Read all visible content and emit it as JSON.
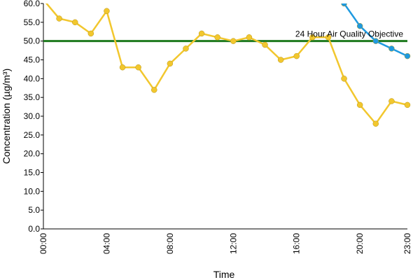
{
  "chart_data": {
    "type": "line",
    "x_label": "Time",
    "y_label": "Concentration (µg/m³)",
    "categories": [
      "00:00",
      null,
      null,
      null,
      "04:00",
      null,
      null,
      null,
      "08:00",
      null,
      null,
      null,
      "12:00",
      null,
      null,
      null,
      "16:00",
      null,
      null,
      null,
      "20:00",
      null,
      null,
      "23:00"
    ],
    "series": [
      {
        "color": "#f2c72e",
        "values": [
          61,
          56,
          55,
          52,
          58,
          43,
          43,
          37,
          44,
          48,
          52,
          51,
          50,
          51,
          49,
          45,
          46,
          51,
          51,
          40,
          33,
          28,
          34,
          33
        ]
      },
      {
        "color": "#1f9ae0",
        "values": [
          null,
          null,
          null,
          null,
          null,
          null,
          null,
          null,
          null,
          null,
          null,
          null,
          null,
          null,
          null,
          null,
          null,
          null,
          null,
          60,
          54,
          50,
          48,
          46
        ]
      }
    ],
    "reference_line": {
      "value": 50,
      "label": "24 Hour Air Quality Objective",
      "color": "#1e7a1e"
    },
    "ylim": [
      0,
      60
    ],
    "yticks": [
      {
        "value": 0,
        "label": "0.0"
      },
      {
        "value": 5,
        "label": "5.0"
      },
      {
        "value": 10,
        "label": "10.0"
      },
      {
        "value": 15,
        "label": "15.0"
      },
      {
        "value": 20,
        "label": "20.0"
      },
      {
        "value": 25,
        "label": "25.0"
      },
      {
        "value": 30,
        "label": "30.0"
      },
      {
        "value": 35,
        "label": "35.0"
      },
      {
        "value": 40,
        "label": "40.0"
      },
      {
        "value": 45,
        "label": "45.0"
      },
      {
        "value": 50,
        "label": "50.0"
      },
      {
        "value": 55,
        "label": "55.0"
      },
      {
        "value": 60,
        "label": "60.0"
      }
    ],
    "grid": false
  }
}
